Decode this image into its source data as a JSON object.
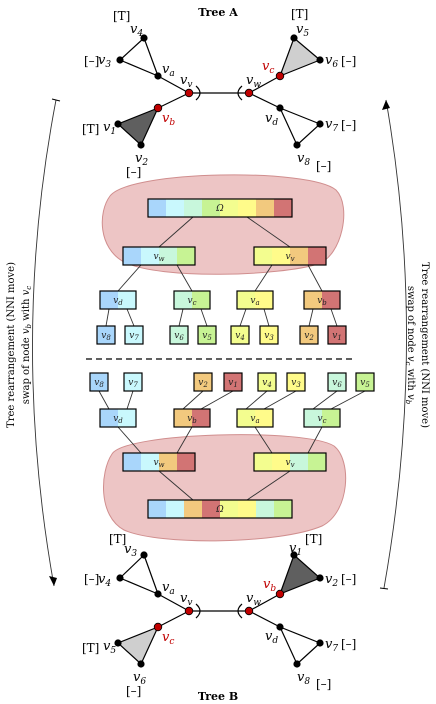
{
  "titles": {
    "top": "Tree A",
    "bottom": "Tree B"
  },
  "side_text": {
    "left_line1": "Tree rearrangement (NNI move)",
    "left_line2": "swap of node v_b with v_c",
    "right_line1": "Tree rearrangement (NNI move)",
    "right_line2": "swap of node v_c with v_b"
  },
  "markers": {
    "T": "[T]",
    "dash": "[–]"
  },
  "root_symbol": "Ω",
  "colors": {
    "v1": "#d27474",
    "v2": "#f2c97e",
    "v3": "#fffb8a",
    "v4": "#f3fd8f",
    "v5": "#c7f394",
    "v6": "#c8f7dc",
    "v7": "#c9f8fd",
    "v8": "#a9d6fb",
    "blob": "#e9b7b7",
    "red_node": "#c00000",
    "gray_tri": "#cfcfcf",
    "dark_tri": "#5f5f5f"
  },
  "tree_a": {
    "top_left": {
      "leaves": [
        "v",
        "4",
        "v",
        "3"
      ],
      "internal": "a"
    },
    "labels": [
      "v4",
      "v3",
      "va",
      "vv",
      "vw",
      "vc",
      "v5",
      "v6",
      "vb",
      "v1",
      "v2",
      "vd",
      "v7",
      "v8"
    ]
  },
  "upper_structure": {
    "root": {
      "label": "Ω"
    },
    "level1": [
      {
        "label": "v",
        "sub": "w"
      },
      {
        "label": "v",
        "sub": "v"
      }
    ],
    "level2": [
      {
        "label": "v",
        "sub": "d"
      },
      {
        "label": "v",
        "sub": "c"
      },
      {
        "label": "v",
        "sub": "a"
      },
      {
        "label": "v",
        "sub": "b"
      }
    ],
    "leaves": [
      {
        "label": "v",
        "sub": "8"
      },
      {
        "label": "v",
        "sub": "7"
      },
      {
        "label": "v",
        "sub": "6"
      },
      {
        "label": "v",
        "sub": "5"
      },
      {
        "label": "v",
        "sub": "4"
      },
      {
        "label": "v",
        "sub": "3"
      },
      {
        "label": "v",
        "sub": "2"
      },
      {
        "label": "v",
        "sub": "1"
      }
    ]
  },
  "lower_structure": {
    "leaves": [
      {
        "label": "v",
        "sub": "8"
      },
      {
        "label": "v",
        "sub": "7"
      },
      {
        "label": "v",
        "sub": "2"
      },
      {
        "label": "v",
        "sub": "1"
      },
      {
        "label": "v",
        "sub": "4"
      },
      {
        "label": "v",
        "sub": "3"
      },
      {
        "label": "v",
        "sub": "6"
      },
      {
        "label": "v",
        "sub": "5"
      }
    ],
    "level2": [
      {
        "label": "v",
        "sub": "d"
      },
      {
        "label": "v",
        "sub": "b"
      },
      {
        "label": "v",
        "sub": "a"
      },
      {
        "label": "v",
        "sub": "c"
      }
    ],
    "level1": [
      {
        "label": "v",
        "sub": "w"
      },
      {
        "label": "v",
        "sub": "v"
      }
    ],
    "root": {
      "label": "Ω"
    }
  }
}
